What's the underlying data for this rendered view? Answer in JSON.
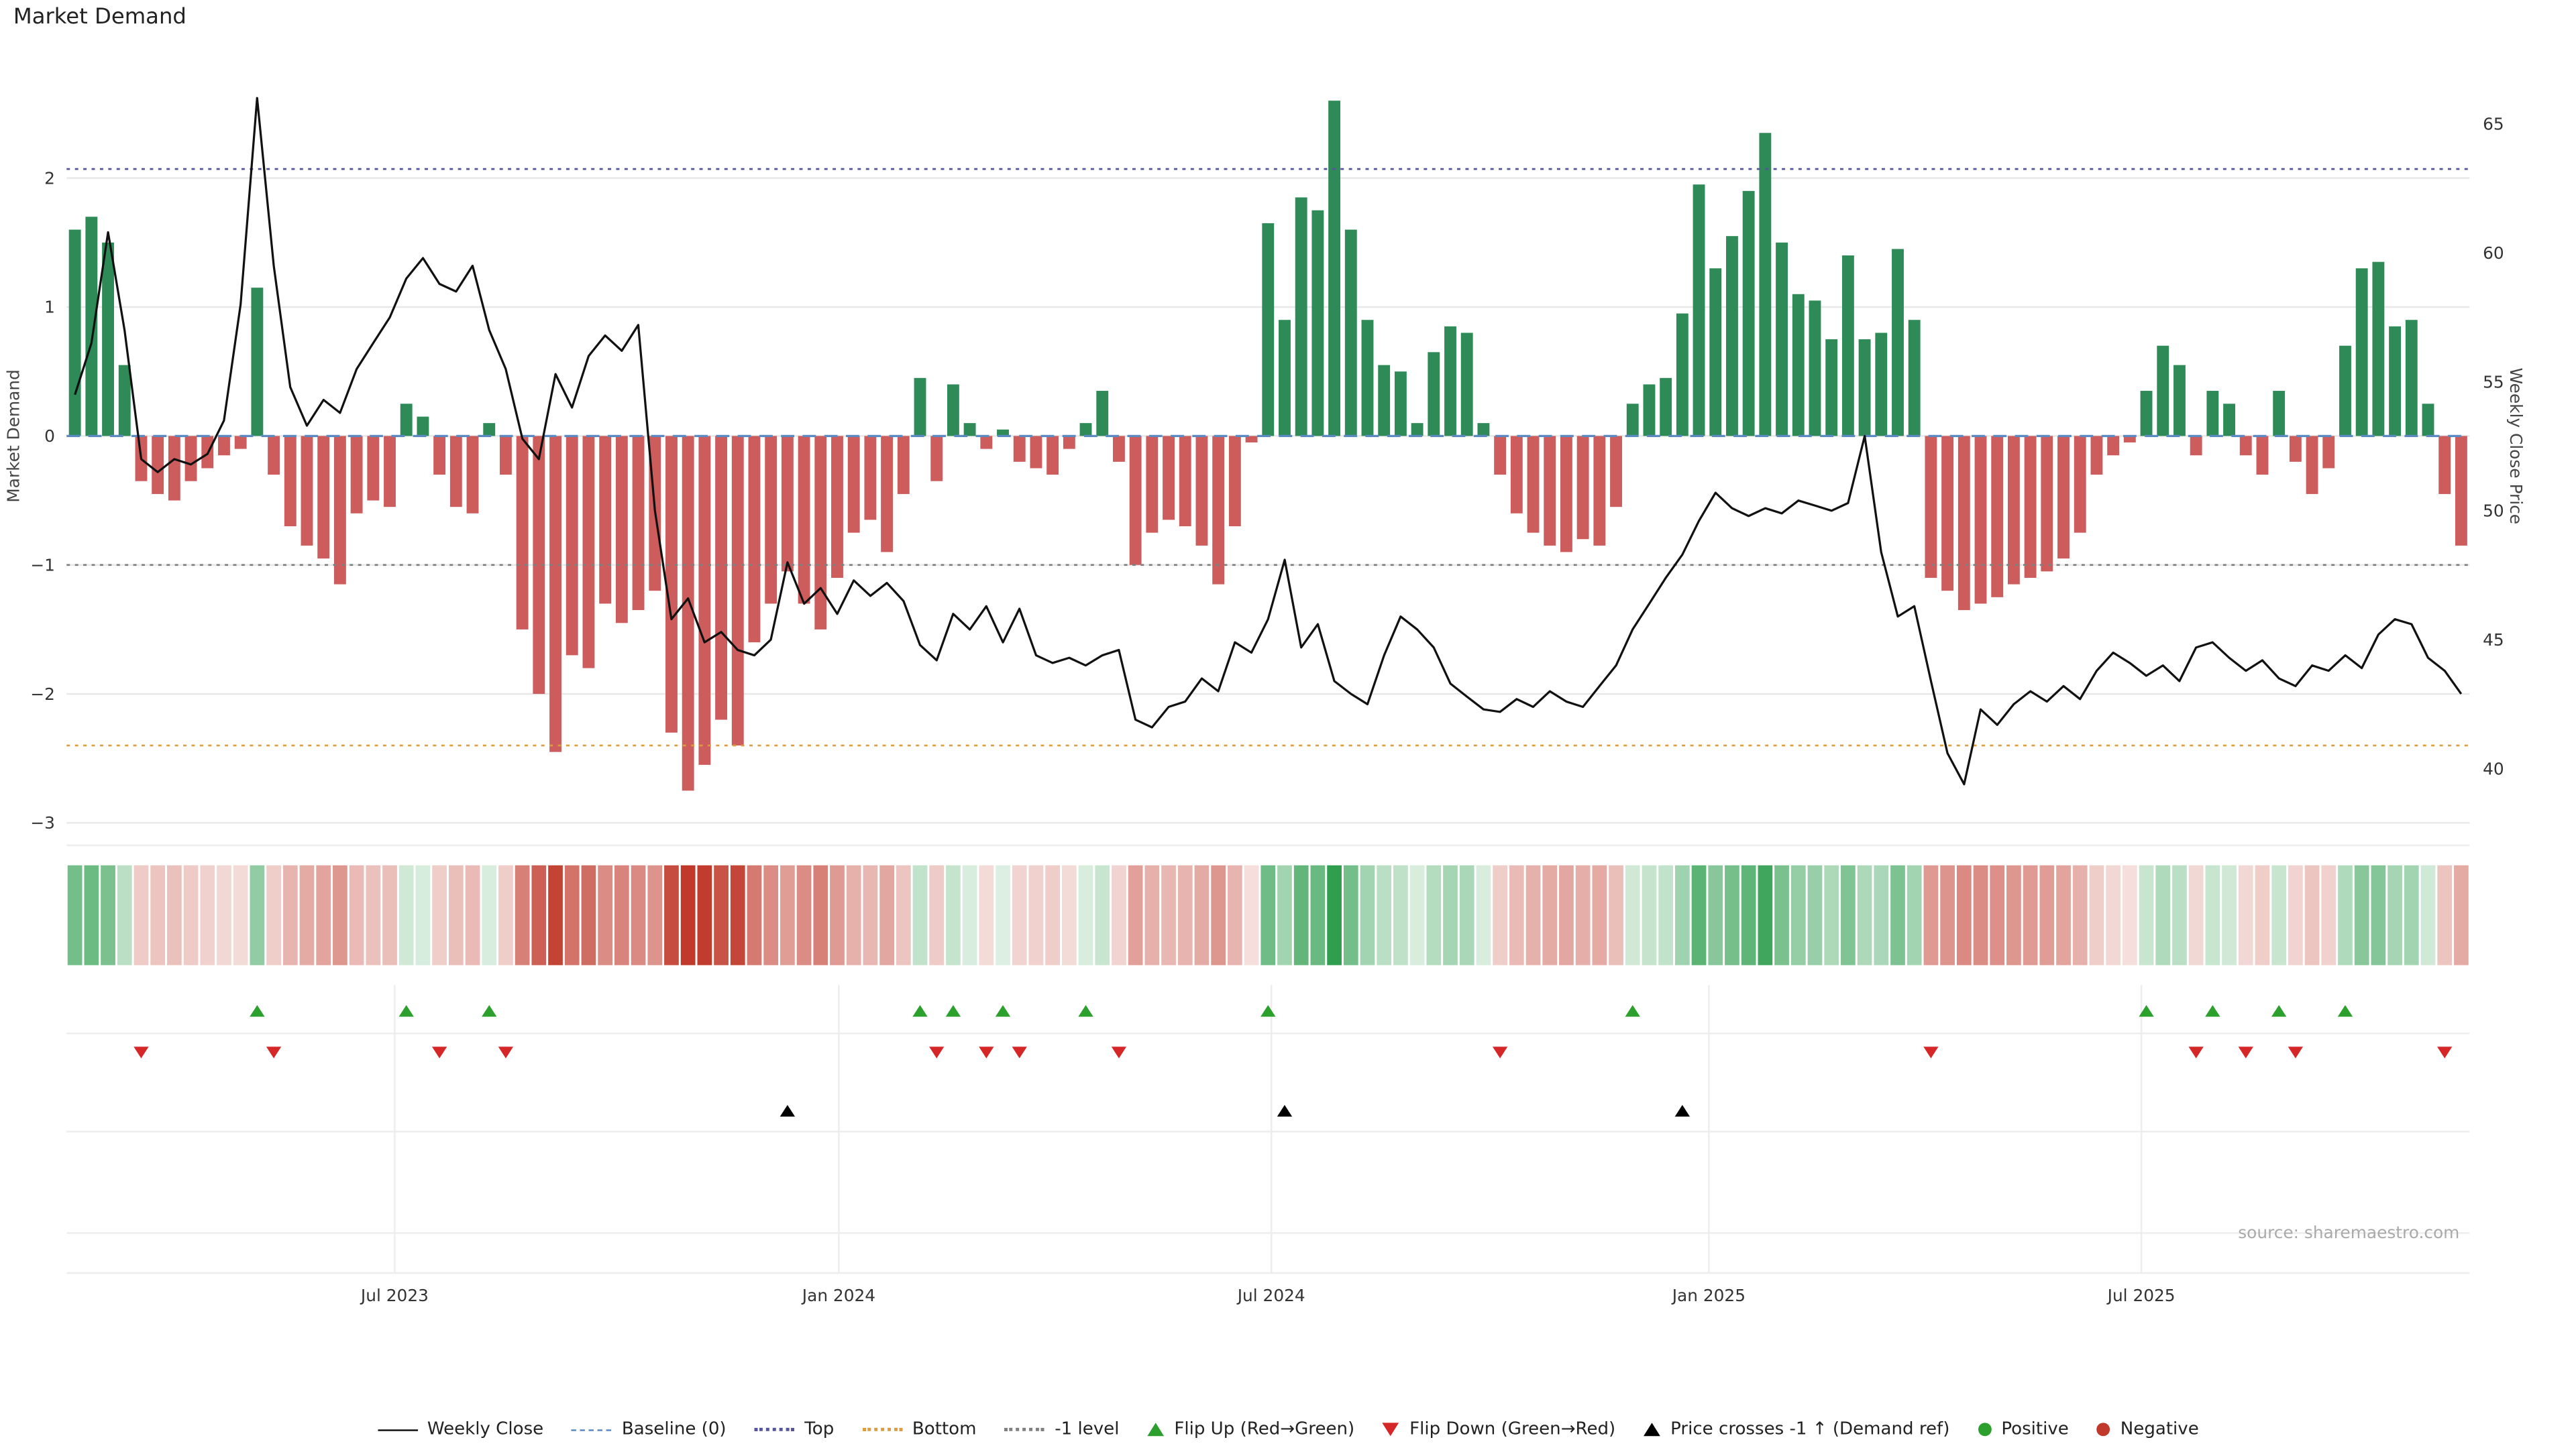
{
  "title": "Market Demand",
  "source": "source: sharemaestro.com",
  "colors": {
    "positive": "#2e8b57",
    "negative": "#cd5c5c",
    "price_line": "#111111",
    "baseline": "#5b8ac2",
    "top_line": "#55559a",
    "bottom_line": "#e09b3c",
    "minus1_line": "#808080",
    "flip_up": "#2ca02c",
    "flip_down": "#d62728",
    "price_cross": "#000000",
    "heat_green": "#2f9e4f",
    "heat_red": "#c0392b",
    "grid": "#e8e8e8",
    "band_grid": "#ededed",
    "axis_text": "#333333"
  },
  "axes": {
    "left_title": "Market Demand",
    "right_title": "Weekly Close Price",
    "left_ticks": [
      {
        "label": "2",
        "value": 2
      },
      {
        "label": "1",
        "value": 1
      },
      {
        "label": "0",
        "value": 0
      },
      {
        "label": "−1",
        "value": -1
      },
      {
        "label": "−2",
        "value": -2
      },
      {
        "label": "−3",
        "value": -3
      }
    ],
    "right_ticks": [
      {
        "label": "65",
        "value": 65
      },
      {
        "label": "60",
        "value": 60
      },
      {
        "label": "55",
        "value": 55
      },
      {
        "label": "50",
        "value": 50
      },
      {
        "label": "45",
        "value": 45
      },
      {
        "label": "40",
        "value": 40
      }
    ],
    "x_ticks": [
      {
        "label": "Jul 2023",
        "week": 19.3
      },
      {
        "label": "Jan 2024",
        "week": 46.1
      },
      {
        "label": "Jul 2024",
        "week": 72.2
      },
      {
        "label": "Jan 2025",
        "week": 98.6
      },
      {
        "label": "Jul 2025",
        "week": 124.7
      }
    ]
  },
  "chart_data": {
    "type": "bar",
    "title": "Market Demand",
    "x_unit": "week_index",
    "n_points": 145,
    "ylim_left": [
      -3.05,
      2.75
    ],
    "ylim_right": [
      40,
      65
    ],
    "grid": true,
    "legend_position": "bottom-center",
    "ref_levels": {
      "baseline": 0,
      "top": 2.07,
      "bottom": -2.4,
      "minus1": -1
    },
    "series": [
      {
        "name": "Market Demand",
        "type": "bar",
        "axis": "left",
        "values": [
          1.6,
          1.7,
          1.5,
          0.55,
          -0.35,
          -0.45,
          -0.5,
          -0.35,
          -0.25,
          -0.15,
          -0.1,
          1.15,
          -0.3,
          -0.7,
          -0.85,
          -0.95,
          -1.15,
          -0.6,
          -0.5,
          -0.55,
          0.25,
          0.15,
          -0.3,
          -0.55,
          -0.6,
          0.1,
          -0.3,
          -1.5,
          -2.0,
          -2.45,
          -1.7,
          -1.8,
          -1.3,
          -1.45,
          -1.35,
          -1.2,
          -2.3,
          -2.75,
          -2.55,
          -2.2,
          -2.4,
          -1.6,
          -1.3,
          -1.05,
          -1.3,
          -1.5,
          -1.1,
          -0.75,
          -0.65,
          -0.9,
          -0.45,
          0.45,
          -0.35,
          0.4,
          0.1,
          -0.1,
          0.05,
          -0.2,
          -0.25,
          -0.3,
          -0.1,
          0.1,
          0.35,
          -0.2,
          -1.0,
          -0.75,
          -0.65,
          -0.7,
          -0.85,
          -1.15,
          -0.7,
          -0.05,
          1.65,
          0.9,
          1.85,
          1.75,
          2.6,
          1.6,
          0.9,
          0.55,
          0.5,
          0.1,
          0.65,
          0.85,
          0.8,
          0.1,
          -0.3,
          -0.6,
          -0.75,
          -0.85,
          -0.9,
          -0.8,
          -0.85,
          -0.55,
          0.25,
          0.4,
          0.45,
          0.95,
          1.95,
          1.3,
          1.55,
          1.9,
          2.35,
          1.5,
          1.1,
          1.05,
          0.75,
          1.4,
          0.75,
          0.8,
          1.45,
          0.9,
          -1.1,
          -1.2,
          -1.35,
          -1.3,
          -1.25,
          -1.15,
          -1.1,
          -1.05,
          -0.95,
          -0.75,
          -0.3,
          -0.15,
          -0.05,
          0.35,
          0.7,
          0.55,
          -0.15,
          0.35,
          0.25,
          -0.15,
          -0.3,
          0.35,
          -0.2,
          -0.45,
          -0.25,
          0.7,
          1.3,
          1.35,
          0.85,
          0.9,
          0.25,
          -0.45,
          -0.85
        ]
      },
      {
        "name": "Weekly Close",
        "type": "line",
        "axis": "right",
        "values": [
          54.5,
          56.5,
          60.8,
          57.0,
          52.0,
          51.5,
          52.0,
          51.8,
          52.2,
          53.5,
          58.0,
          66.0,
          59.5,
          54.8,
          53.3,
          54.3,
          53.8,
          55.5,
          56.5,
          57.5,
          59.0,
          59.8,
          58.8,
          58.5,
          59.5,
          57.0,
          55.5,
          52.8,
          52.0,
          55.3,
          54.0,
          56.0,
          56.8,
          56.2,
          57.2,
          50.0,
          45.8,
          46.6,
          44.9,
          45.3,
          44.6,
          44.4,
          45.0,
          48.0,
          46.4,
          47.0,
          46.0,
          47.3,
          46.7,
          47.2,
          46.5,
          44.8,
          44.2,
          46.0,
          45.4,
          46.3,
          44.9,
          46.2,
          44.4,
          44.1,
          44.3,
          44.0,
          44.4,
          44.6,
          41.9,
          41.6,
          42.4,
          42.6,
          43.5,
          43.0,
          44.9,
          44.5,
          45.8,
          48.1,
          44.7,
          45.6,
          43.4,
          42.9,
          42.5,
          44.4,
          45.9,
          45.4,
          44.7,
          43.3,
          42.8,
          42.3,
          42.2,
          42.7,
          42.4,
          43.0,
          42.6,
          42.4,
          43.2,
          44.0,
          45.4,
          46.4,
          47.4,
          48.3,
          49.6,
          50.7,
          50.1,
          49.8,
          50.1,
          49.9,
          50.4,
          50.2,
          50.0,
          50.3,
          52.9,
          48.4,
          45.9,
          46.3,
          43.4,
          40.6,
          39.4,
          42.3,
          41.7,
          42.5,
          43.0,
          42.6,
          43.2,
          42.7,
          43.8,
          44.5,
          44.1,
          43.6,
          44.0,
          43.4,
          44.7,
          44.9,
          44.3,
          43.8,
          44.2,
          43.5,
          43.2,
          44.0,
          43.8,
          44.4,
          43.9,
          45.2,
          45.8,
          45.6,
          44.3,
          43.8,
          42.9
        ]
      }
    ],
    "heatmap": {
      "source_series": "Market Demand",
      "note": "color intensity strip of weekly demand values"
    },
    "markers": {
      "flip_up_weeks": [
        11,
        20,
        25,
        51,
        53,
        56,
        61,
        72,
        94,
        125,
        129,
        133,
        137
      ],
      "flip_down_weeks": [
        4,
        12,
        22,
        26,
        52,
        55,
        57,
        63,
        86,
        112,
        128,
        131,
        134,
        143
      ],
      "price_cross_minus1_weeks": [
        43,
        73,
        97
      ]
    }
  },
  "legend": [
    {
      "label": "Weekly Close",
      "symbol": "line",
      "color": "#111111"
    },
    {
      "label": "Baseline (0)",
      "symbol": "dashed-line",
      "color": "#5b8ac2"
    },
    {
      "label": "Top",
      "symbol": "dotted-line",
      "color": "#55559a"
    },
    {
      "label": "Bottom",
      "symbol": "dotted-line",
      "color": "#e09b3c"
    },
    {
      "label": "-1 level",
      "symbol": "dotted-line",
      "color": "#808080"
    },
    {
      "label": "Flip Up (Red→Green)",
      "symbol": "triangle-up",
      "color": "#2ca02c"
    },
    {
      "label": "Flip Down (Green→Red)",
      "symbol": "triangle-down",
      "color": "#d62728"
    },
    {
      "label": "Price crosses -1 ↑ (Demand ref)",
      "symbol": "triangle-up",
      "color": "#000000"
    },
    {
      "label": "Positive",
      "symbol": "dot",
      "color": "#2ca02c"
    },
    {
      "label": "Negative",
      "symbol": "dot",
      "color": "#c0392b"
    }
  ]
}
